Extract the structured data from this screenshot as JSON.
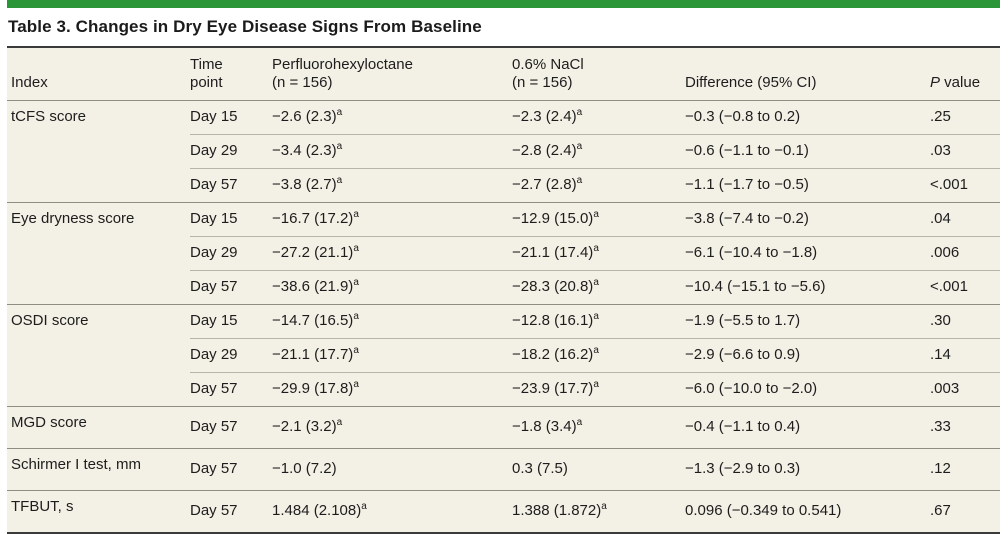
{
  "title": "Table 3. Changes in Dry Eye Disease Signs From Baseline",
  "columns": {
    "index": "Index",
    "time_point": "Time\npoint",
    "drug": "Perfluorohexyloctane\n(n = 156)",
    "control": "0.6% NaCl\n(n = 156)",
    "difference": "Difference (95% CI)",
    "p_value_italic": "P",
    "p_value_rest": " value"
  },
  "table": {
    "groups": [
      {
        "index": "tCFS score",
        "rows": [
          {
            "time": "Day 15",
            "drug": "−2.6 (2.3)",
            "drug_sup": "a",
            "control": "−2.3 (2.4)",
            "control_sup": "a",
            "difference": "−0.3 (−0.8 to 0.2)",
            "p": ".25"
          },
          {
            "time": "Day 29",
            "drug": "−3.4 (2.3)",
            "drug_sup": "a",
            "control": "−2.8 (2.4)",
            "control_sup": "a",
            "difference": "−0.6 (−1.1 to −0.1)",
            "p": ".03"
          },
          {
            "time": "Day 57",
            "drug": "−3.8 (2.7)",
            "drug_sup": "a",
            "control": "−2.7 (2.8)",
            "control_sup": "a",
            "difference": "−1.1 (−1.7 to −0.5)",
            "p": "<.001"
          }
        ]
      },
      {
        "index": "Eye dryness score",
        "rows": [
          {
            "time": "Day 15",
            "drug": "−16.7 (17.2)",
            "drug_sup": "a",
            "control": "−12.9 (15.0)",
            "control_sup": "a",
            "difference": "−3.8 (−7.4 to −0.2)",
            "p": ".04"
          },
          {
            "time": "Day 29",
            "drug": "−27.2 (21.1)",
            "drug_sup": "a",
            "control": "−21.1 (17.4)",
            "control_sup": "a",
            "difference": "−6.1 (−10.4 to −1.8)",
            "p": ".006"
          },
          {
            "time": "Day 57",
            "drug": "−38.6 (21.9)",
            "drug_sup": "a",
            "control": "−28.3 (20.8)",
            "control_sup": "a",
            "difference": "−10.4 (−15.1 to −5.6)",
            "p": "<.001"
          }
        ]
      },
      {
        "index": "OSDI score",
        "rows": [
          {
            "time": "Day 15",
            "drug": "−14.7 (16.5)",
            "drug_sup": "a",
            "control": "−12.8 (16.1)",
            "control_sup": "a",
            "difference": "−1.9 (−5.5 to 1.7)",
            "p": ".30"
          },
          {
            "time": "Day 29",
            "drug": "−21.1 (17.7)",
            "drug_sup": "a",
            "control": "−18.2 (16.2)",
            "control_sup": "a",
            "difference": "−2.9 (−6.6 to 0.9)",
            "p": ".14"
          },
          {
            "time": "Day 57",
            "drug": "−29.9 (17.8)",
            "drug_sup": "a",
            "control": "−23.9 (17.7)",
            "control_sup": "a",
            "difference": "−6.0 (−10.0 to −2.0)",
            "p": ".003"
          }
        ]
      },
      {
        "index": "MGD score",
        "rows": [
          {
            "time": "Day 57",
            "drug": "−2.1 (3.2)",
            "drug_sup": "a",
            "control": "−1.8 (3.4)",
            "control_sup": "a",
            "difference": "−0.4 (−1.1 to 0.4)",
            "p": ".33"
          }
        ]
      },
      {
        "index": "Schirmer I test, mm",
        "rows": [
          {
            "time": "Day 57",
            "drug": "−1.0 (7.2)",
            "drug_sup": "",
            "control": "0.3 (7.5)",
            "control_sup": "",
            "difference": "−1.3 (−2.9 to 0.3)",
            "p": ".12"
          }
        ]
      },
      {
        "index": "TFBUT, s",
        "rows": [
          {
            "time": "Day 57",
            "drug": "1.484 (2.108)",
            "drug_sup": "a",
            "control": "1.388 (1.872)",
            "control_sup": "a",
            "difference": "0.096 (−0.349 to 0.541)",
            "p": ".67"
          }
        ]
      }
    ]
  },
  "colors": {
    "accent_bar": "#2a9638",
    "table_background": "#f3f0e5",
    "rule_dark": "#3a3a3a",
    "rule_group": "#8f8d84",
    "rule_row": "#b7b4a9",
    "text": "#1d1d1d"
  }
}
